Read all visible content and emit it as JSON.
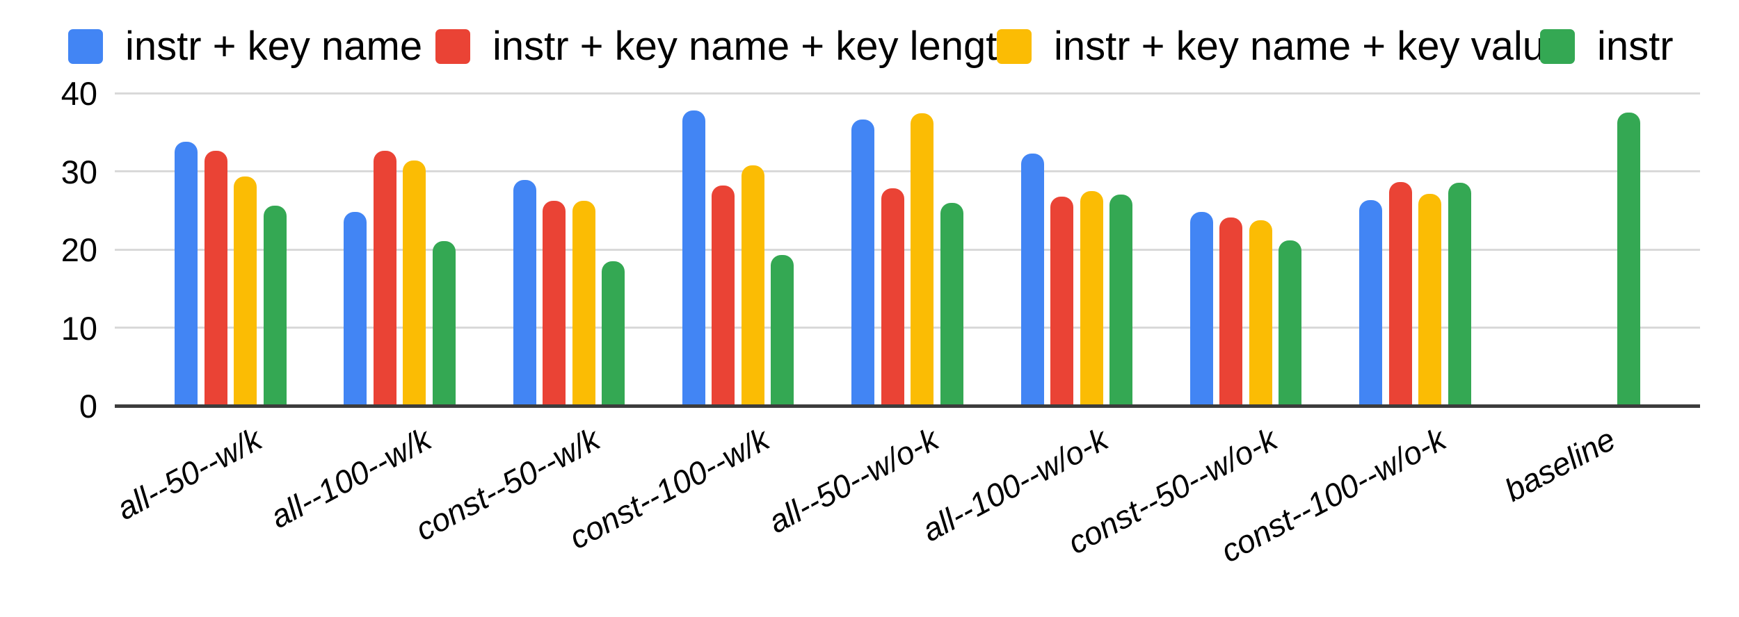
{
  "chart_data": {
    "type": "bar",
    "title": "",
    "xlabel": "",
    "ylabel": "",
    "ylim": [
      0,
      40
    ],
    "yticks": [
      0,
      10,
      20,
      30,
      40
    ],
    "grid": true,
    "legend_position": "top",
    "background": "#ffffff",
    "axis_color": "#3c3c3c",
    "gridline_color": "#d9d9d9",
    "categories": [
      "all--50--w/k",
      "all--100--w/k",
      "const--50--w/k",
      "const--100--w/k",
      "all--50--w/o-k",
      "all--100--w/o-k",
      "const--50--w/o-k",
      "const--100--w/o-k",
      "baseline"
    ],
    "series": [
      {
        "name": "instr + key name",
        "color": "#4285F4",
        "values": [
          33.8,
          24.8,
          28.9,
          37.8,
          36.6,
          32.3,
          24.8,
          26.3,
          null
        ]
      },
      {
        "name": "instr + key name + key length",
        "color": "#EA4335",
        "values": [
          32.6,
          32.6,
          26.2,
          28.2,
          27.8,
          26.8,
          24.1,
          28.6,
          null
        ]
      },
      {
        "name": "instr + key name + key value",
        "color": "#FBBC04",
        "values": [
          29.3,
          31.4,
          26.2,
          30.8,
          37.4,
          27.5,
          23.7,
          27.1,
          null
        ]
      },
      {
        "name": "instr",
        "color": "#34A853",
        "values": [
          25.6,
          21.1,
          18.5,
          19.3,
          26.0,
          27.0,
          21.2,
          28.5,
          37.5
        ]
      }
    ]
  }
}
